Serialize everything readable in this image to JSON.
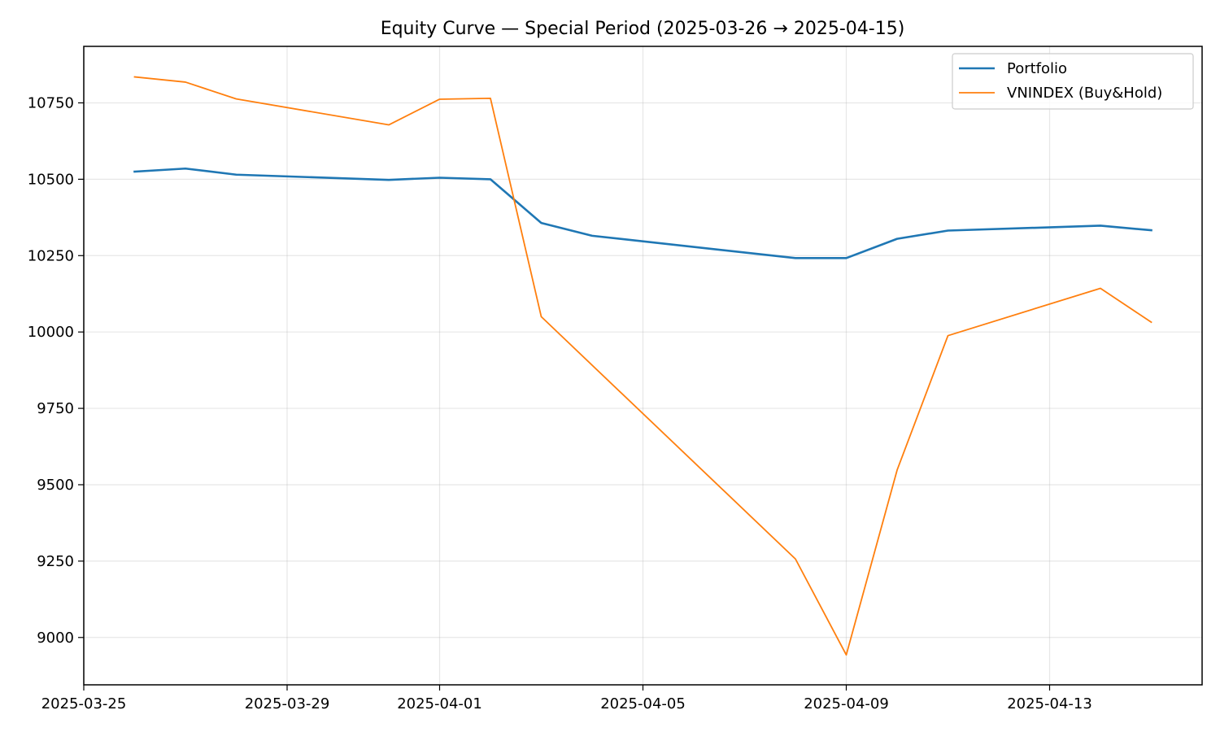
{
  "chart_data": {
    "type": "line",
    "title": "Equity Curve — Special Period (2025-03-26 → 2025-04-15)",
    "xlabel": "",
    "ylabel": "",
    "xlim": [
      "2025-03-25",
      "2025-04-16"
    ],
    "ylim": [
      8845,
      10935
    ],
    "x_ticks": [
      "2025-03-25",
      "2025-03-29",
      "2025-04-01",
      "2025-04-05",
      "2025-04-09",
      "2025-04-13"
    ],
    "y_ticks": [
      9000,
      9250,
      9500,
      9750,
      10000,
      10250,
      10500,
      10750
    ],
    "grid": true,
    "legend_position": "top-right",
    "series": [
      {
        "name": "Portfolio",
        "color": "#1f77b4",
        "x": [
          "2025-03-26",
          "2025-03-27",
          "2025-03-28",
          "2025-03-31",
          "2025-04-01",
          "2025-04-02",
          "2025-04-03",
          "2025-04-04",
          "2025-04-08",
          "2025-04-09",
          "2025-04-10",
          "2025-04-11",
          "2025-04-14",
          "2025-04-15"
        ],
        "values": [
          10525,
          10535,
          10515,
          10498,
          10505,
          10500,
          10357,
          10315,
          10242,
          10242,
          10305,
          10332,
          10348,
          10333
        ]
      },
      {
        "name": "VNINDEX (Buy&Hold)",
        "color": "#ff7f0e",
        "x": [
          "2025-03-26",
          "2025-03-27",
          "2025-03-28",
          "2025-03-31",
          "2025-04-01",
          "2025-04-02",
          "2025-04-03",
          "2025-04-08",
          "2025-04-09",
          "2025-04-10",
          "2025-04-11",
          "2025-04-14",
          "2025-04-15"
        ],
        "values": [
          10835,
          10818,
          10763,
          10678,
          10762,
          10765,
          10050,
          9257,
          8943,
          9548,
          9988,
          10143,
          10032
        ]
      }
    ]
  }
}
